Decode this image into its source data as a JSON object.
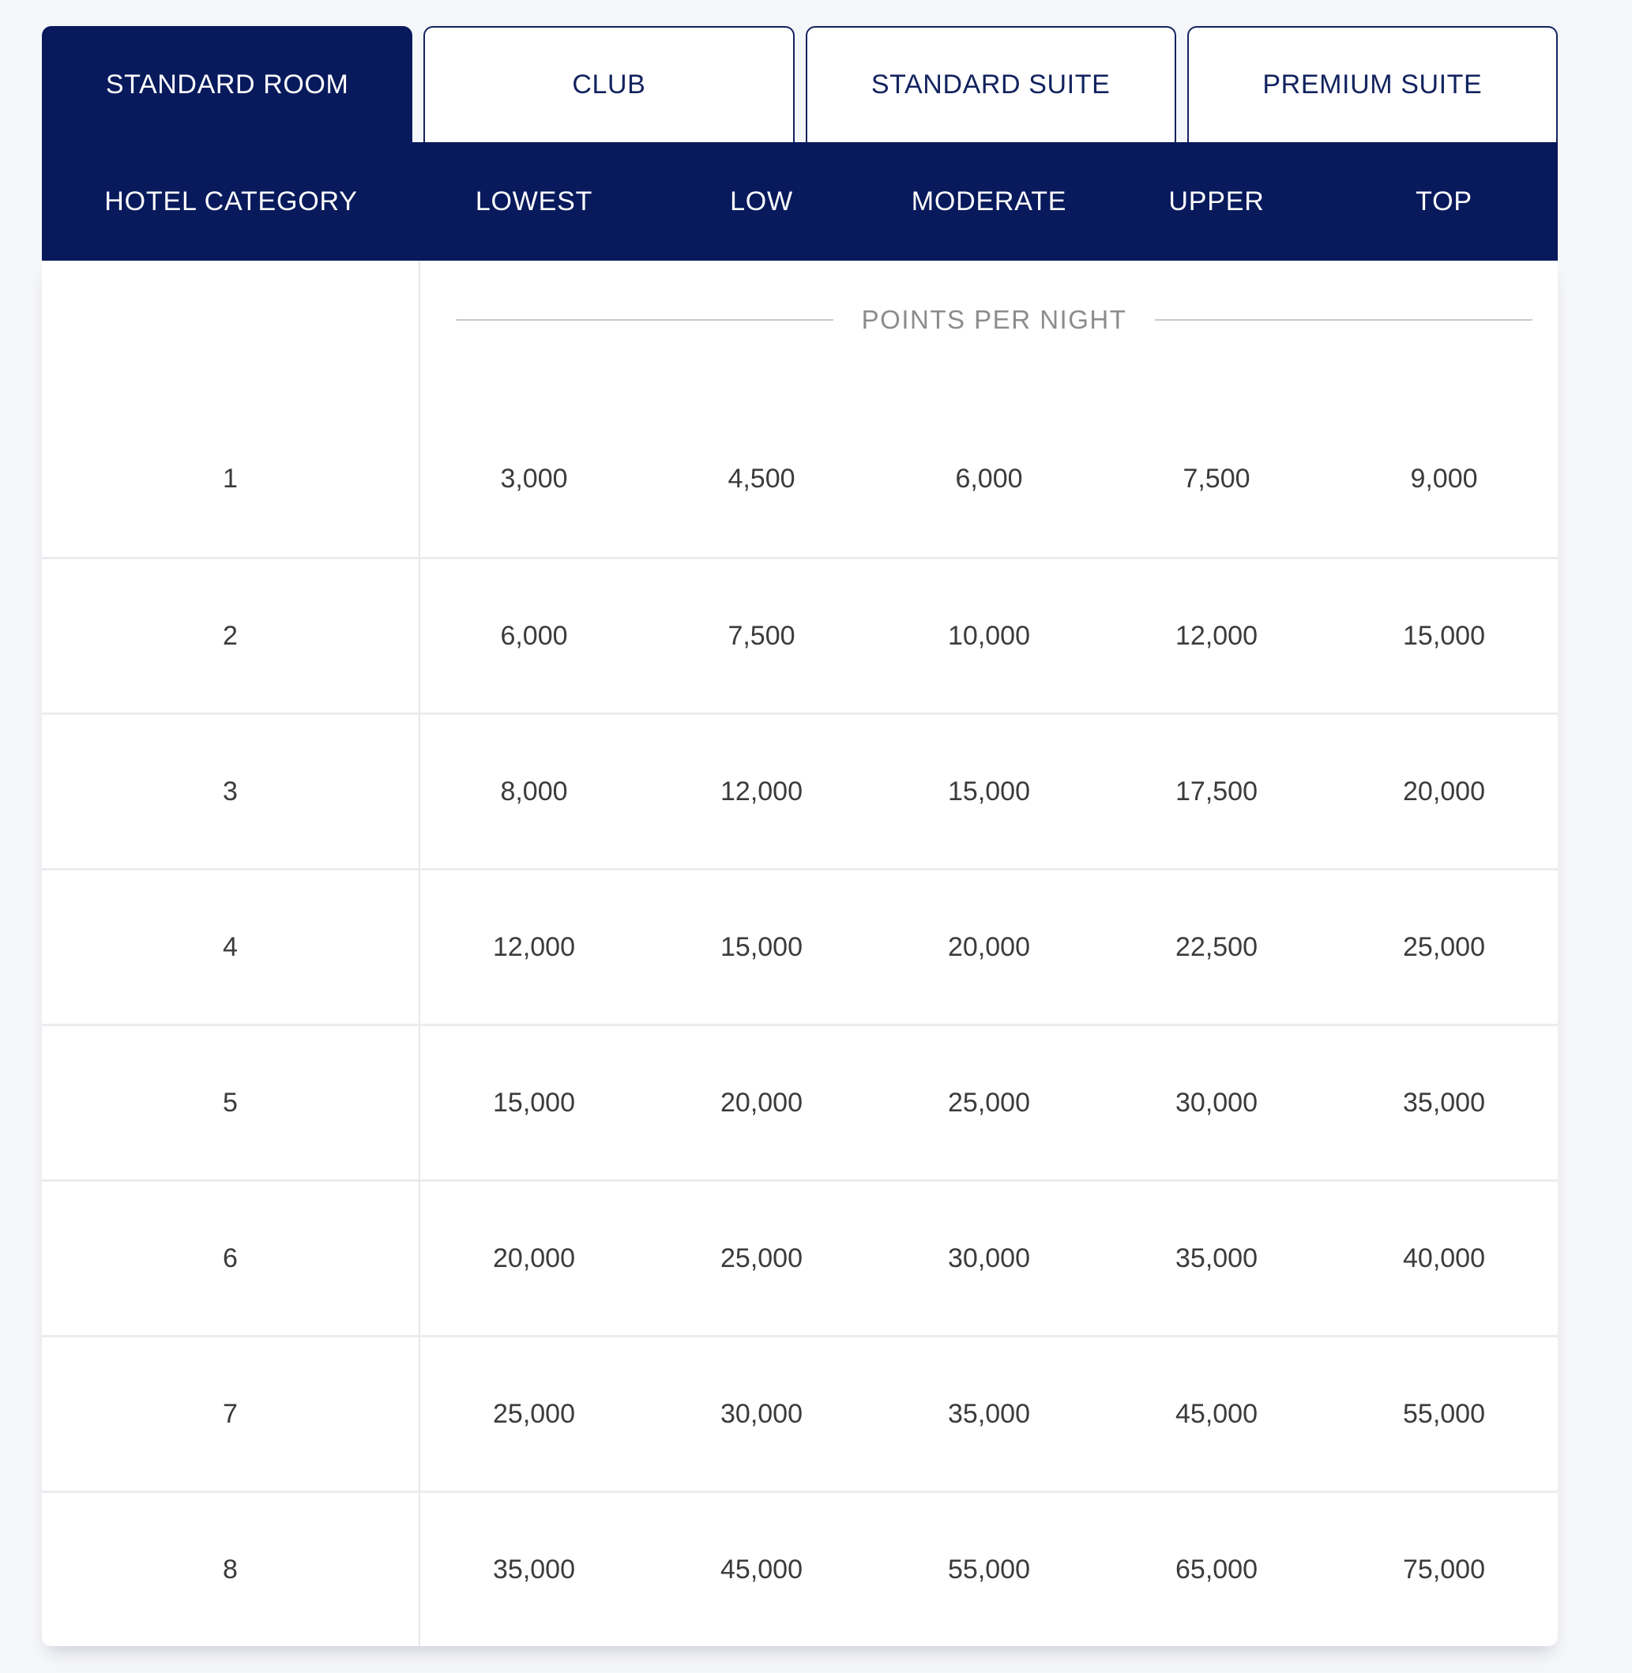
{
  "colors": {
    "navy": "#081a5c",
    "page_background": "#f5f6f9",
    "body_text": "#3b3b3d",
    "muted_text": "#8c8c8f",
    "divider": "#ececee"
  },
  "tabs": [
    {
      "label": "STANDARD ROOM",
      "active": true
    },
    {
      "label": "CLUB",
      "active": false
    },
    {
      "label": "STANDARD SUITE",
      "active": false
    },
    {
      "label": "PREMIUM SUITE",
      "active": false
    }
  ],
  "table": {
    "category_header": "HOTEL CATEGORY",
    "rate_headers": [
      "LOWEST",
      "LOW",
      "MODERATE",
      "UPPER",
      "TOP"
    ],
    "section_label": "POINTS PER NIGHT",
    "rows": [
      {
        "category": "1",
        "values": [
          "3,000",
          "4,500",
          "6,000",
          "7,500",
          "9,000"
        ]
      },
      {
        "category": "2",
        "values": [
          "6,000",
          "7,500",
          "10,000",
          "12,000",
          "15,000"
        ]
      },
      {
        "category": "3",
        "values": [
          "8,000",
          "12,000",
          "15,000",
          "17,500",
          "20,000"
        ]
      },
      {
        "category": "4",
        "values": [
          "12,000",
          "15,000",
          "20,000",
          "22,500",
          "25,000"
        ]
      },
      {
        "category": "5",
        "values": [
          "15,000",
          "20,000",
          "25,000",
          "30,000",
          "35,000"
        ]
      },
      {
        "category": "6",
        "values": [
          "20,000",
          "25,000",
          "30,000",
          "35,000",
          "40,000"
        ]
      },
      {
        "category": "7",
        "values": [
          "25,000",
          "30,000",
          "35,000",
          "45,000",
          "55,000"
        ]
      },
      {
        "category": "8",
        "values": [
          "35,000",
          "45,000",
          "55,000",
          "65,000",
          "75,000"
        ]
      }
    ]
  }
}
